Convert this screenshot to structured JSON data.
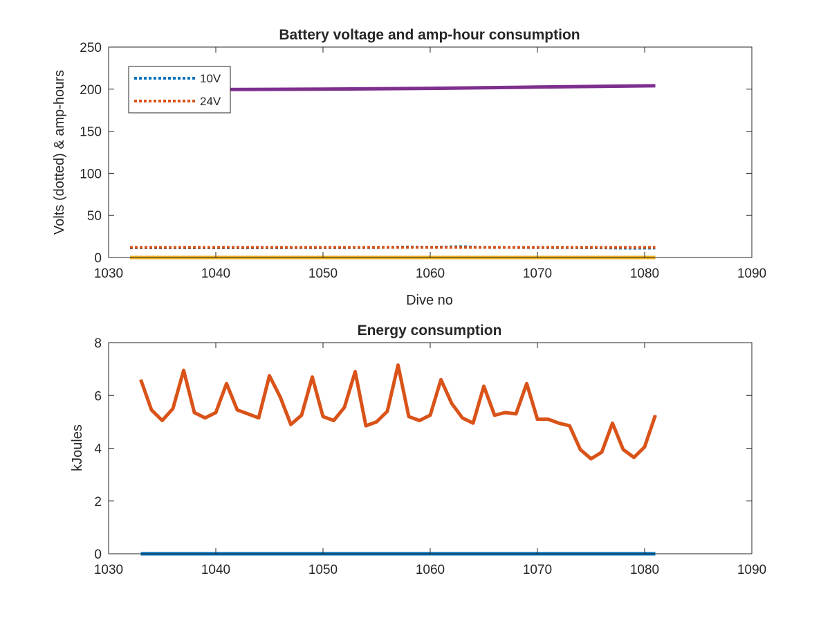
{
  "chart_data": [
    {
      "type": "line",
      "title": "Battery voltage and amp-hour consumption",
      "xlabel": "Dive no",
      "ylabel": "Volts (dotted) & amp-hours",
      "xlim": [
        1030,
        1090
      ],
      "ylim": [
        0,
        250
      ],
      "xticks": [
        "1030",
        "1040",
        "1050",
        "1060",
        "1070",
        "1080",
        "1090"
      ],
      "yticks": [
        "0",
        "50",
        "100",
        "150",
        "200",
        "250"
      ],
      "legend": {
        "placement": "top-left",
        "entries": [
          "10V",
          "24V"
        ]
      },
      "series": [
        {
          "name": "10V",
          "style": "dotted",
          "color": "#0072BD",
          "x": [
            1032,
            1040,
            1050,
            1055,
            1058,
            1060,
            1063,
            1065,
            1070,
            1075,
            1079,
            1081
          ],
          "y": [
            11.5,
            11.5,
            11.6,
            11.8,
            12.5,
            12.2,
            12.8,
            12.0,
            11.8,
            11.6,
            11.0,
            11.3
          ]
        },
        {
          "name": "24V",
          "style": "dotted",
          "color": "#D95319",
          "x": [
            1032,
            1040,
            1050,
            1060,
            1070,
            1081
          ],
          "y": [
            12.0,
            12.0,
            12.0,
            12.0,
            12.0,
            12.0
          ]
        },
        {
          "style": "solid",
          "color": "#7E2F8E",
          "x": [
            1032,
            1040,
            1050,
            1060,
            1070,
            1081
          ],
          "y": [
            199,
            199.5,
            200,
            201,
            202.5,
            204
          ]
        },
        {
          "style": "solid",
          "color": "#EDB120",
          "x": [
            1032,
            1081
          ],
          "y": [
            0,
            0
          ]
        }
      ]
    },
    {
      "type": "line",
      "title": "Energy consumption",
      "xlabel": "",
      "ylabel": "kJoules",
      "xlim": [
        1030,
        1090
      ],
      "ylim": [
        0,
        8
      ],
      "xticks": [
        "1030",
        "1040",
        "1050",
        "1060",
        "1070",
        "1080",
        "1090"
      ],
      "yticks": [
        "0",
        "2",
        "4",
        "6",
        "8"
      ],
      "series": [
        {
          "style": "solid",
          "color": "#0072BD",
          "x": [
            1033,
            1081
          ],
          "y": [
            0,
            0
          ]
        },
        {
          "style": "solid",
          "color": "#D95319",
          "x": [
            1033,
            1034,
            1035,
            1036,
            1037,
            1038,
            1039,
            1040,
            1041,
            1042,
            1043,
            1044,
            1045,
            1046,
            1047,
            1048,
            1049,
            1050,
            1051,
            1052,
            1053,
            1054,
            1055,
            1056,
            1057,
            1058,
            1059,
            1060,
            1061,
            1062,
            1063,
            1064,
            1065,
            1066,
            1067,
            1068,
            1069,
            1070,
            1071,
            1072,
            1073,
            1074,
            1075,
            1076,
            1077,
            1078,
            1079,
            1080,
            1081
          ],
          "y": [
            6.6,
            5.45,
            5.05,
            5.5,
            6.95,
            5.35,
            5.15,
            5.35,
            6.45,
            5.45,
            5.3,
            5.15,
            6.75,
            5.95,
            4.9,
            5.25,
            6.7,
            5.2,
            5.05,
            5.55,
            6.9,
            4.85,
            5.0,
            5.4,
            7.15,
            5.2,
            5.05,
            5.25,
            6.6,
            5.7,
            5.15,
            4.95,
            6.35,
            5.25,
            5.35,
            5.3,
            6.45,
            5.1,
            5.1,
            4.95,
            4.85,
            3.95,
            3.6,
            3.85,
            4.95,
            3.95,
            3.65,
            4.05,
            5.25
          ]
        }
      ]
    }
  ]
}
